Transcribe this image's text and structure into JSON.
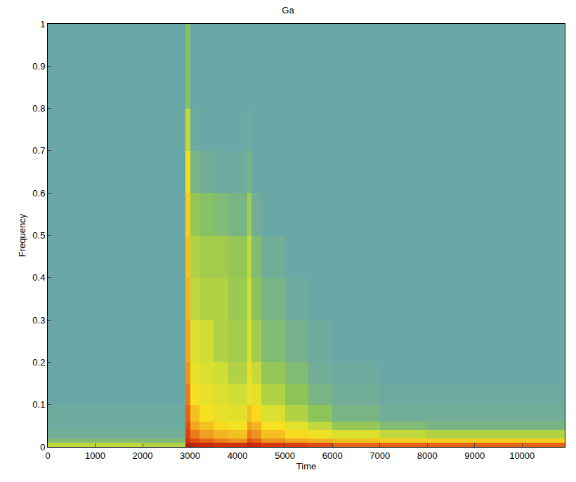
{
  "chart_data": {
    "type": "heatmap",
    "title": "Ga",
    "x_label": "Time",
    "y_label": "Frequency",
    "x_edges": [
      0,
      1000,
      2000,
      2900,
      3000,
      3200,
      3500,
      3800,
      4200,
      4300,
      4500,
      5000,
      5500,
      6000,
      7000,
      8000,
      9000,
      10000,
      10900
    ],
    "y_edges": [
      0,
      0.01,
      0.02,
      0.04,
      0.06,
      0.1,
      0.15,
      0.2,
      0.3,
      0.4,
      0.5,
      0.6,
      0.7,
      0.8,
      1.0
    ],
    "z": [
      [
        0.62,
        0.62,
        0.6,
        0.98,
        0.97,
        0.96,
        0.95,
        0.95,
        0.97,
        0.96,
        0.94,
        0.93,
        0.92,
        0.9,
        0.9,
        0.9,
        0.9,
        0.9
      ],
      [
        0.52,
        0.52,
        0.52,
        0.95,
        0.92,
        0.9,
        0.88,
        0.86,
        0.92,
        0.9,
        0.86,
        0.84,
        0.82,
        0.8,
        0.78,
        0.78,
        0.78,
        0.78
      ],
      [
        0.48,
        0.48,
        0.48,
        0.93,
        0.88,
        0.85,
        0.82,
        0.8,
        0.88,
        0.86,
        0.8,
        0.76,
        0.72,
        0.66,
        0.62,
        0.6,
        0.6,
        0.6
      ],
      [
        0.47,
        0.47,
        0.47,
        0.92,
        0.84,
        0.8,
        0.76,
        0.74,
        0.85,
        0.82,
        0.74,
        0.68,
        0.62,
        0.56,
        0.52,
        0.5,
        0.5,
        0.5
      ],
      [
        0.47,
        0.47,
        0.47,
        0.9,
        0.8,
        0.74,
        0.7,
        0.68,
        0.8,
        0.76,
        0.66,
        0.6,
        0.55,
        0.5,
        0.48,
        0.48,
        0.48,
        0.48
      ],
      [
        0.46,
        0.46,
        0.46,
        0.88,
        0.74,
        0.7,
        0.66,
        0.64,
        0.72,
        0.68,
        0.6,
        0.55,
        0.5,
        0.48,
        0.47,
        0.47,
        0.47,
        0.47
      ],
      [
        0.46,
        0.46,
        0.46,
        0.86,
        0.7,
        0.66,
        0.64,
        0.6,
        0.7,
        0.63,
        0.56,
        0.52,
        0.48,
        0.47,
        0.46,
        0.46,
        0.46,
        0.46
      ],
      [
        0.46,
        0.46,
        0.46,
        0.84,
        0.66,
        0.64,
        0.6,
        0.58,
        0.66,
        0.58,
        0.52,
        0.49,
        0.47,
        0.46,
        0.46,
        0.46,
        0.46,
        0.46
      ],
      [
        0.46,
        0.46,
        0.46,
        0.82,
        0.62,
        0.6,
        0.6,
        0.57,
        0.64,
        0.55,
        0.5,
        0.47,
        0.46,
        0.46,
        0.46,
        0.46,
        0.46,
        0.46
      ],
      [
        0.46,
        0.46,
        0.46,
        0.8,
        0.6,
        0.58,
        0.58,
        0.56,
        0.62,
        0.52,
        0.48,
        0.46,
        0.46,
        0.46,
        0.46,
        0.46,
        0.46,
        0.46
      ],
      [
        0.46,
        0.46,
        0.46,
        0.78,
        0.56,
        0.54,
        0.52,
        0.5,
        0.58,
        0.48,
        0.46,
        0.46,
        0.46,
        0.46,
        0.46,
        0.46,
        0.46,
        0.46
      ],
      [
        0.46,
        0.46,
        0.46,
        0.72,
        0.5,
        0.48,
        0.47,
        0.47,
        0.5,
        0.46,
        0.46,
        0.46,
        0.46,
        0.46,
        0.46,
        0.46,
        0.46,
        0.46
      ],
      [
        0.46,
        0.46,
        0.46,
        0.62,
        0.47,
        0.46,
        0.46,
        0.46,
        0.47,
        0.46,
        0.46,
        0.46,
        0.46,
        0.46,
        0.46,
        0.46,
        0.46,
        0.46
      ],
      [
        0.46,
        0.46,
        0.46,
        0.54,
        0.46,
        0.46,
        0.46,
        0.46,
        0.46,
        0.46,
        0.46,
        0.46,
        0.46,
        0.46,
        0.46,
        0.46,
        0.46,
        0.46
      ]
    ],
    "zlim": [
      0,
      1
    ],
    "xlim": [
      0,
      10900
    ],
    "xticks": [
      0,
      1000,
      2000,
      3000,
      4000,
      5000,
      6000,
      7000,
      8000,
      9000,
      10000
    ],
    "ylim": [
      0,
      1
    ],
    "yticks": [
      0,
      0.1,
      0.2,
      0.3,
      0.4,
      0.5,
      0.6,
      0.7,
      0.8,
      0.9,
      1
    ],
    "grid": false
  }
}
